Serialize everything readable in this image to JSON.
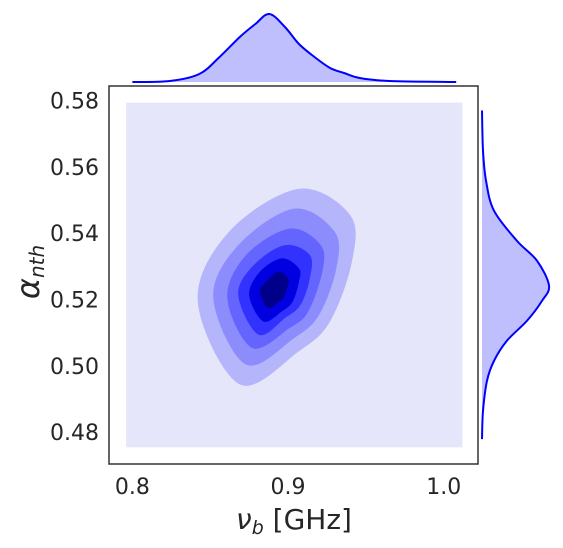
{
  "chart_data": {
    "type": "kde2d",
    "xlabel": {
      "symbol": "ν",
      "sub": "b",
      "rest": " [GHz]"
    },
    "ylabel": {
      "symbol": "α",
      "sub": "nth"
    },
    "xlim": [
      0.785,
      1.022
    ],
    "ylim": [
      0.471,
      0.585
    ],
    "xticks": [
      0.8,
      0.9,
      {
        "value": 1,
        "label": "1.0"
      }
    ],
    "yticks": [
      0.58,
      0.56,
      0.54,
      0.52,
      {
        "value": 0.5,
        "label": "0.50"
      },
      0.48
    ],
    "levels": [
      {
        "color": "#e6e6fa",
        "x": [
          0.796,
          1.012,
          1.012,
          0.796
        ],
        "y": [
          0.58,
          0.58,
          0.476,
          0.476
        ]
      },
      {
        "color": "#b5b5fb",
        "x": [
          0.907,
          0.94,
          0.941,
          0.927,
          0.907,
          0.869,
          0.842,
          0.862
        ],
        "y": [
          0.554,
          0.546,
          0.532,
          0.514,
          0.505,
          0.495,
          0.52,
          0.541
        ]
      },
      {
        "color": "#8c8cfd",
        "x": [
          0.904,
          0.93,
          0.931,
          0.92,
          0.904,
          0.873,
          0.852,
          0.868
        ],
        "y": [
          0.548,
          0.541,
          0.53,
          0.516,
          0.509,
          0.501,
          0.521,
          0.537
        ]
      },
      {
        "color": "#6464fe",
        "x": [
          0.901,
          0.921,
          0.922,
          0.913,
          0.901,
          0.877,
          0.861,
          0.873
        ],
        "y": [
          0.542,
          0.537,
          0.529,
          0.517,
          0.512,
          0.506,
          0.521,
          0.534
        ]
      },
      {
        "color": "#3232ff",
        "x": [
          0.898,
          0.914,
          0.914,
          0.908,
          0.898,
          0.881,
          0.868,
          0.878
        ],
        "y": [
          0.537,
          0.534,
          0.527,
          0.519,
          0.515,
          0.51,
          0.522,
          0.531
        ]
      },
      {
        "color": "#0000e0",
        "x": [
          0.896,
          0.907,
          0.907,
          0.903,
          0.896,
          0.884,
          0.875,
          0.882
        ],
        "y": [
          0.533,
          0.53,
          0.526,
          0.52,
          0.517,
          0.514,
          0.522,
          0.529
        ]
      },
      {
        "color": "#00008a",
        "x": [
          0.894,
          0.9,
          0.9,
          0.897,
          0.894,
          0.887,
          0.882,
          0.886
        ],
        "y": [
          0.529,
          0.527,
          0.525,
          0.521,
          0.52,
          0.518,
          0.523,
          0.526
        ]
      }
    ],
    "marginal_x": {
      "x": [
        0.8,
        0.824,
        0.843,
        0.856,
        0.869,
        0.879,
        0.888,
        0.898,
        0.907,
        0.917,
        0.927,
        0.936,
        0.946,
        0.965,
        1.008
      ],
      "density": [
        0,
        1,
        8,
        25,
        45,
        58,
        68,
        55,
        38,
        25,
        14,
        9,
        4,
        1,
        0
      ]
    },
    "marginal_y": {
      "y": [
        0.5776,
        0.5655,
        0.5565,
        0.5474,
        0.5383,
        0.5323,
        0.5248,
        0.5202,
        0.5142,
        0.5082,
        0.5021,
        0.4961,
        0.487,
        0.4785
      ],
      "density": [
        0,
        1,
        4,
        12,
        35,
        55,
        67,
        60,
        45,
        25,
        12,
        5,
        1,
        0
      ]
    },
    "density_lim": [
      0,
      80
    ],
    "marginal_color": "#0000ff",
    "marginal_fill": "#bfbffd"
  }
}
